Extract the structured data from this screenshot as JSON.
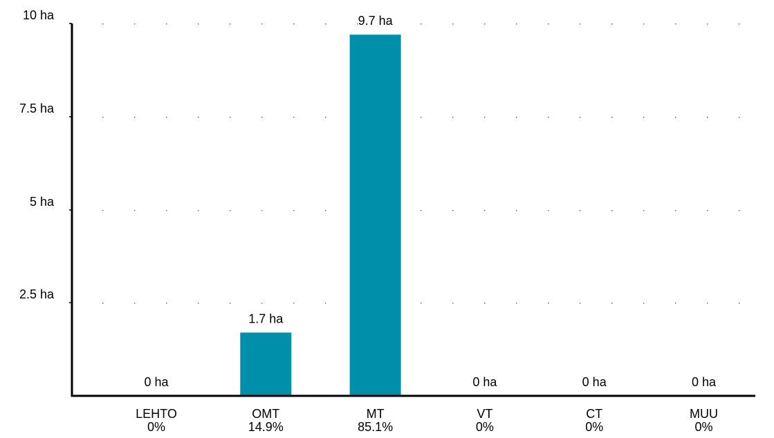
{
  "chart_data": {
    "type": "bar",
    "categories": [
      "LEHTO",
      "OMT",
      "MT",
      "VT",
      "CT",
      "MUU"
    ],
    "values": [
      0,
      1.7,
      9.7,
      0,
      0,
      0
    ],
    "value_labels": [
      "0 ha",
      "1.7 ha",
      "9.7 ha",
      "0 ha",
      "0 ha",
      "0 ha"
    ],
    "percent_labels": [
      "0%",
      "14.9%",
      "85.1%",
      "0%",
      "0%",
      "0%"
    ],
    "ylim": [
      0,
      10
    ],
    "y_ticks": [
      {
        "value": 2.5,
        "label": "2.5 ha"
      },
      {
        "value": 5,
        "label": "5 ha"
      },
      {
        "value": 7.5,
        "label": "7.5 ha"
      },
      {
        "value": 10,
        "label": "10 ha"
      }
    ],
    "grid": "horizontal-dotted",
    "colors": {
      "bar": "#008fab",
      "axis": "#000000",
      "grid": "#555555"
    },
    "title": "",
    "xlabel": "",
    "ylabel": ""
  }
}
